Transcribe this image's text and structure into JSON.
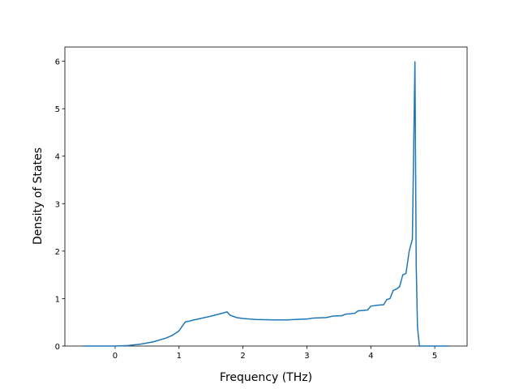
{
  "chart_data": {
    "type": "line",
    "xlabel": "Frequency (THz)",
    "ylabel": "Density of States",
    "x": [
      -0.5,
      0,
      0.2,
      0.4,
      0.6,
      0.8,
      0.9,
      1.0,
      1.05,
      1.1,
      1.15,
      1.2,
      1.3,
      1.5,
      1.7,
      1.75,
      1.8,
      1.9,
      2.0,
      2.2,
      2.5,
      2.7,
      2.8,
      3.0,
      3.1,
      3.3,
      3.4,
      3.55,
      3.6,
      3.75,
      3.8,
      3.95,
      4.0,
      4.1,
      4.2,
      4.25,
      4.3,
      4.35,
      4.4,
      4.45,
      4.5,
      4.55,
      4.6,
      4.65,
      4.69,
      4.71,
      4.73,
      4.76,
      5.22
    ],
    "series": [
      {
        "color": "#1f77b4",
        "values": [
          0,
          0,
          0.01,
          0.04,
          0.09,
          0.17,
          0.23,
          0.32,
          0.42,
          0.51,
          0.52,
          0.54,
          0.57,
          0.63,
          0.7,
          0.72,
          0.65,
          0.6,
          0.58,
          0.56,
          0.55,
          0.55,
          0.56,
          0.57,
          0.59,
          0.6,
          0.63,
          0.64,
          0.67,
          0.69,
          0.74,
          0.76,
          0.84,
          0.86,
          0.87,
          0.98,
          1.0,
          1.17,
          1.2,
          1.25,
          1.5,
          1.53,
          2.0,
          2.25,
          6.0,
          1.7,
          0.4,
          0,
          0
        ]
      }
    ],
    "xlim": [
      -0.786,
      5.506
    ],
    "ylim": [
      0,
      6.3
    ],
    "xticks": [
      0,
      1,
      2,
      3,
      4,
      5
    ],
    "yticks": [
      0,
      1,
      2,
      3,
      4,
      5,
      6
    ]
  }
}
